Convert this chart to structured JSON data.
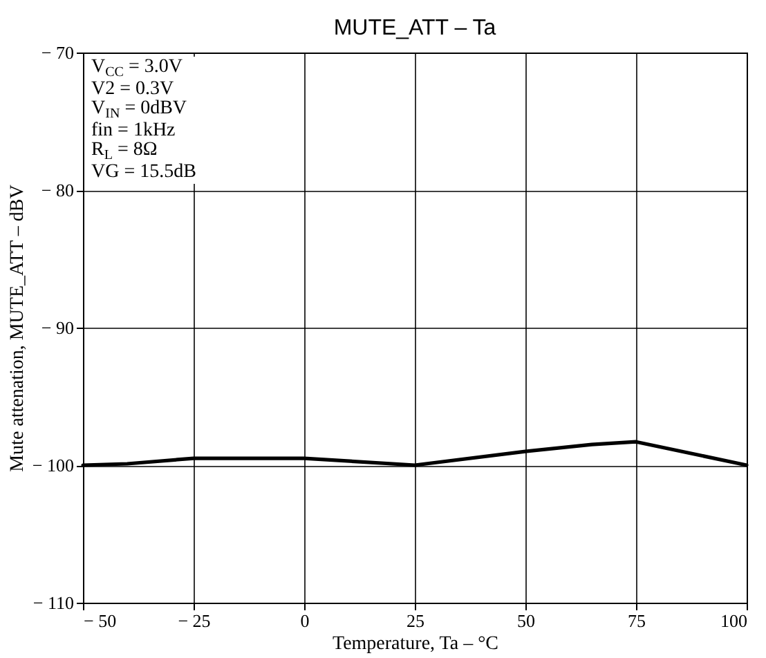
{
  "chart_data": {
    "type": "line",
    "title": "MUTE_ATT  –  Ta",
    "xlabel": "Temperature, Ta  –  °C",
    "ylabel": "Mute attenation, MUTE_ATT  –  dBV",
    "x": [
      -50,
      -40,
      -25,
      0,
      25,
      50,
      65,
      75,
      100
    ],
    "series": [
      {
        "color": "#000000",
        "values": [
          -100,
          -99.9,
          -99.5,
          -99.5,
          -100,
          -99,
          -98.5,
          -98.3,
          -100
        ]
      }
    ],
    "xlim": [
      -50,
      100
    ],
    "xticks": [
      {
        "value": -50,
        "label": "− 50"
      },
      {
        "value": -25,
        "label": "− 25"
      },
      0,
      25,
      50,
      75,
      100
    ],
    "ylim": [
      -110,
      -70
    ],
    "yticks": [
      {
        "value": -110,
        "label": "− 110"
      },
      {
        "value": -100,
        "label": "− 100"
      },
      {
        "value": -90,
        "label": "− 90"
      },
      {
        "value": -80,
        "label": "− 80"
      },
      {
        "value": -70,
        "label": "− 70"
      }
    ],
    "grid": true,
    "line_style": "solid",
    "annotations": [
      "V$_{CC}$ = 3.0V",
      "V2 = 0.3V",
      "V$_{IN}$ = 0dBV",
      "fin = 1kHz",
      "R$_{L}$ = 8Ω",
      "VG = 15.5dB"
    ]
  }
}
